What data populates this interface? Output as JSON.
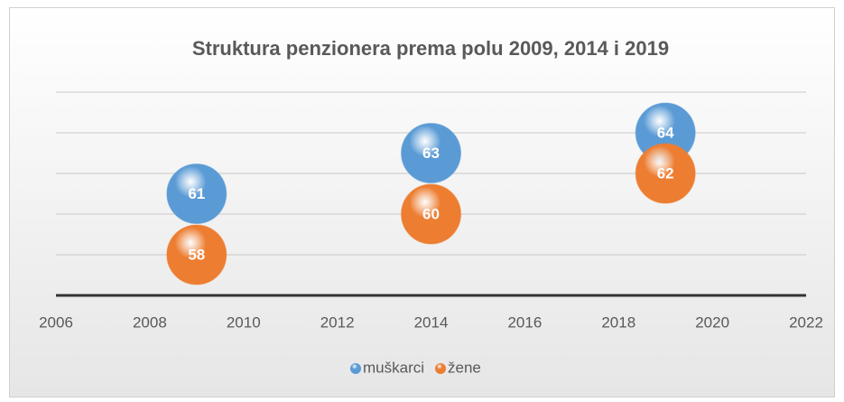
{
  "chart_data": {
    "type": "bubble",
    "title": "Struktura penzionera prema polu 2009, 2014 i 2019",
    "x": [
      2009,
      2014,
      2019
    ],
    "series": [
      {
        "name": "muškarci",
        "color": "#5b9bd5",
        "values": [
          61,
          63,
          64
        ]
      },
      {
        "name": "žene",
        "color": "#ed7d31",
        "values": [
          58,
          60,
          62
        ]
      }
    ],
    "xlim": [
      2006,
      2022
    ],
    "xticks": [
      2006,
      2008,
      2010,
      2012,
      2014,
      2016,
      2018,
      2020,
      2022
    ],
    "ylim": [
      56,
      66
    ],
    "yticks": [
      56,
      58,
      60,
      62,
      64,
      66
    ],
    "grid": true,
    "legend": "bottom"
  }
}
